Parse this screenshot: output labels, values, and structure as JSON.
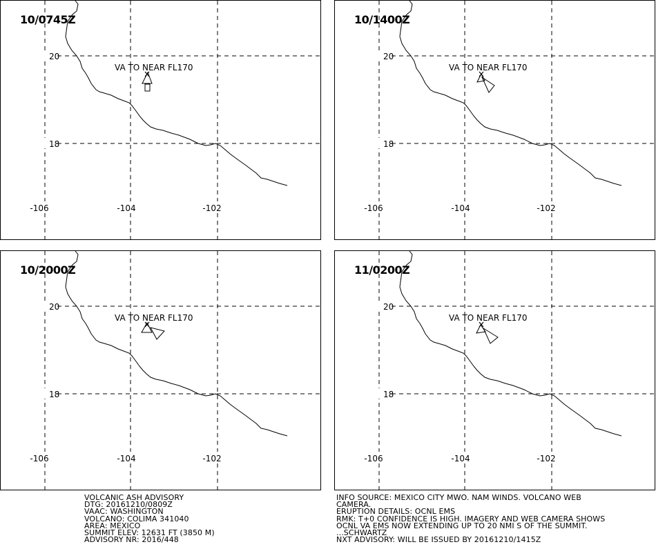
{
  "panels": [
    {
      "time": "10/0745Z",
      "label": "VA TO NEAR FL170",
      "plume": "plume-0"
    },
    {
      "time": "10/1400Z",
      "label": "VA TO NEAR FL170",
      "plume": "plume-1"
    },
    {
      "time": "10/2000Z",
      "label": "VA TO NEAR FL170",
      "plume": "plume-2"
    },
    {
      "time": "11/0200Z",
      "label": "VA TO NEAR FL170",
      "plume": "plume-3"
    }
  ],
  "axes": {
    "lon_labels": [
      "-106",
      "-104",
      "-102"
    ],
    "lat_labels": [
      "20",
      "18"
    ]
  },
  "advisory_left": [
    "VOLCANIC ASH ADVISORY",
    "DTG: 20161210/0809Z",
    "VAAC: WASHINGTON",
    "VOLCANO: COLIMA 341040",
    "AREA: MEXICO",
    "SUMMIT ELEV: 12631 FT (3850 M)",
    "ADVISORY NR: 2016/448"
  ],
  "advisory_right": [
    "INFO SOURCE: MEXICO CITY MWO. NAM WINDS. VOLCANO WEB",
    "CAMERA.",
    "ERUPTION DETAILS: OCNL EMS",
    "RMK: T+0 CONFIDENCE IS HIGH. IMAGERY AND WEB CAMERA SHOWS",
    "OCNL VA EMS NOW EXTENDING UP TO 20 NMI S OF THE SUMMIT.",
    "...SCHWARTZ",
    "NXT ADVISORY: WILL BE ISSUED BY 20161210/1415Z"
  ]
}
